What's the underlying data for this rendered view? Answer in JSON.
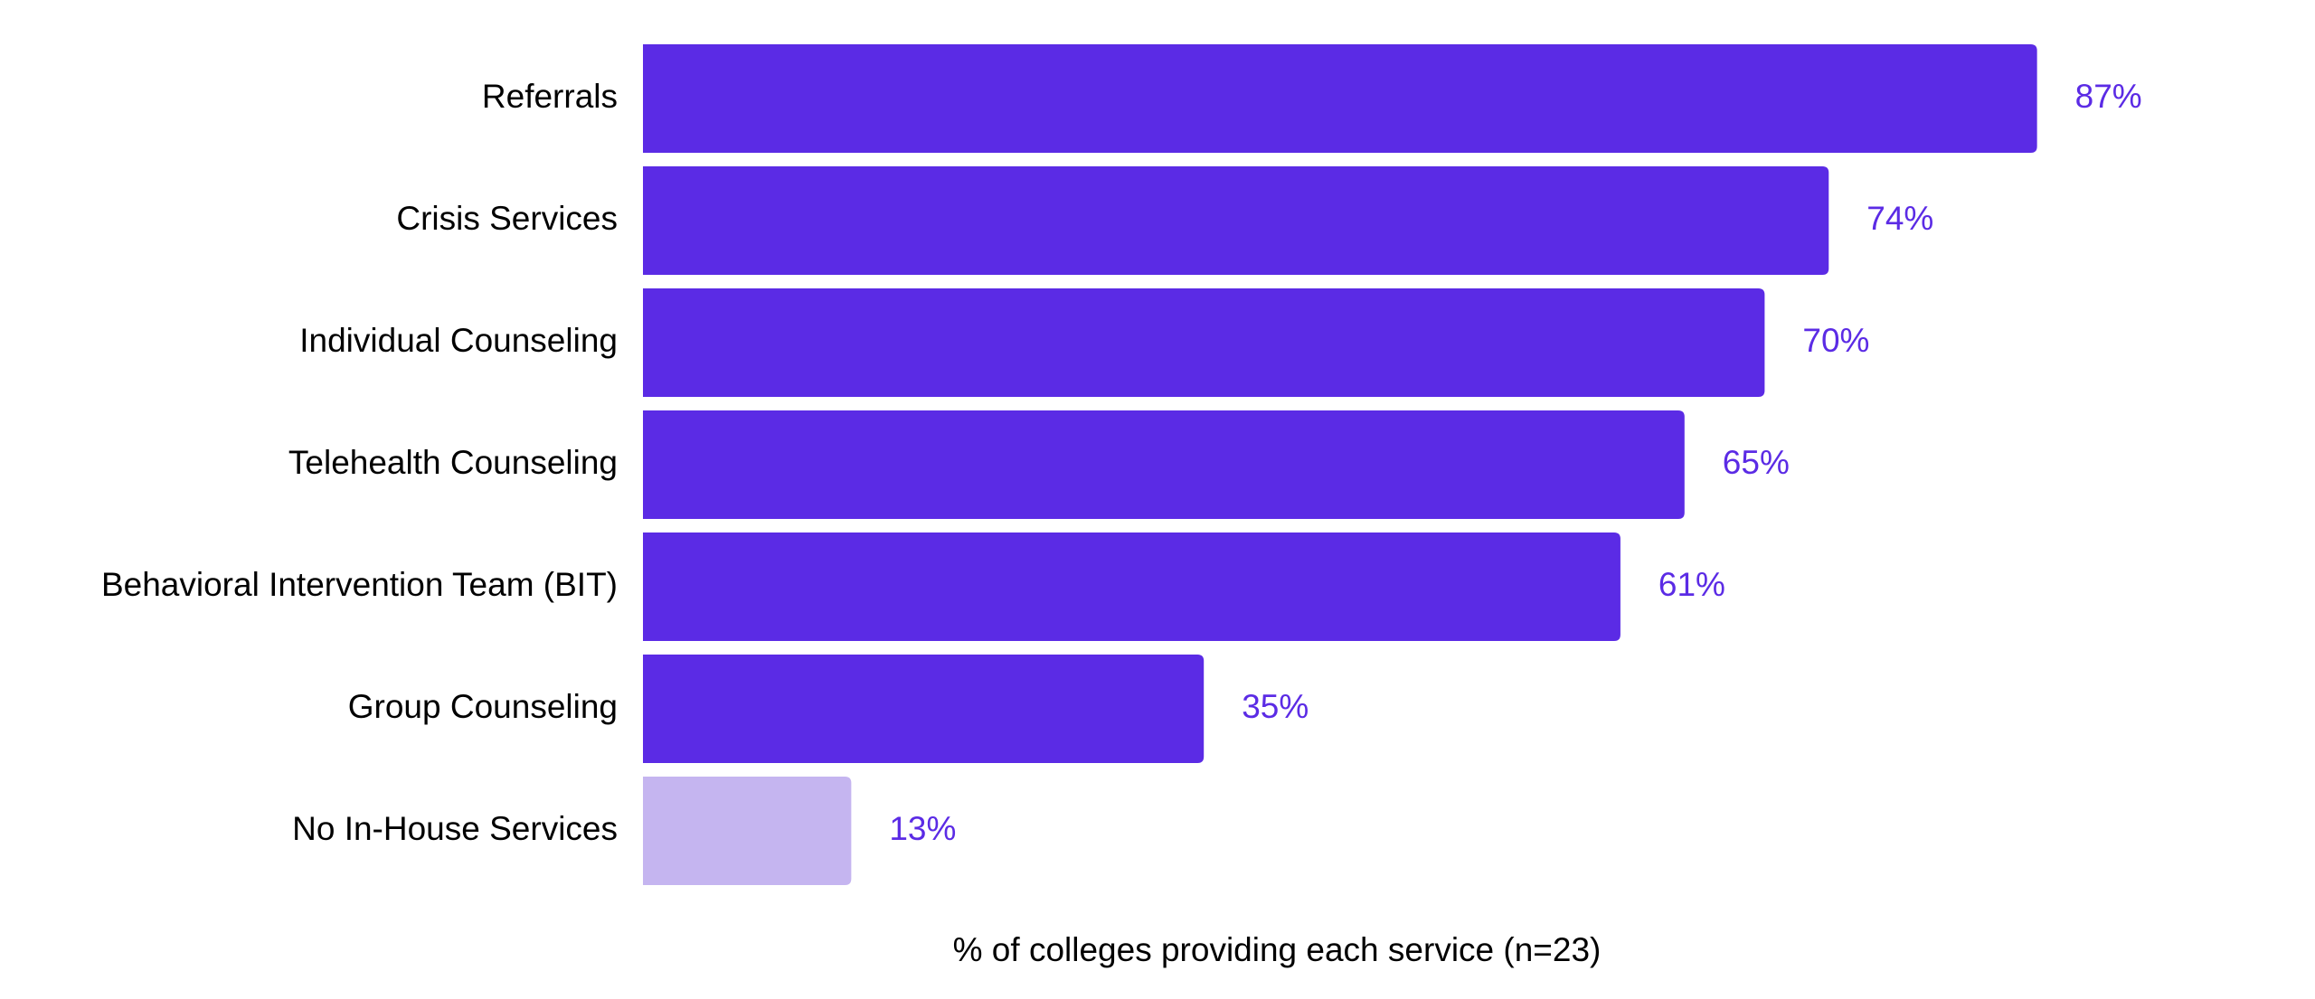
{
  "chart_data": {
    "type": "bar",
    "orientation": "horizontal",
    "categories": [
      "Referrals",
      "Crisis Services",
      "Individual Counseling",
      "Telehealth Counseling",
      "Behavioral Intervention Team (BIT)",
      "Group Counseling",
      "No In-House Services"
    ],
    "values": [
      87,
      74,
      70,
      65,
      61,
      35,
      13
    ],
    "value_labels": [
      "87%",
      "74%",
      "70%",
      "65%",
      "61%",
      "35%",
      "13%"
    ],
    "bar_colors": [
      "#5b2be5",
      "#5b2be5",
      "#5b2be5",
      "#5b2be5",
      "#5b2be5",
      "#5b2be5",
      "#c5b5f0"
    ],
    "value_label_color": "#5b2be5",
    "title": "",
    "xlabel": "% of colleges providing each service (n=23)",
    "ylabel": "",
    "xlim": [
      0,
      100
    ],
    "grid": false,
    "legend": false
  }
}
